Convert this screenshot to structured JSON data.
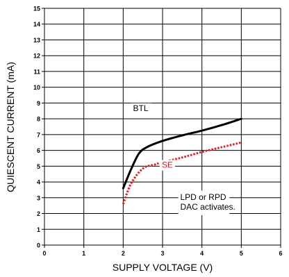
{
  "chart_data": {
    "type": "line",
    "title": "",
    "xlabel": "SUPPLY VOLTAGE (V)",
    "ylabel": "QUIESCENT CURRENT (mA)",
    "xlim": [
      0,
      6
    ],
    "ylim": [
      0,
      15
    ],
    "xticks": [
      "0",
      "1",
      "2",
      "3",
      "4",
      "5",
      "6"
    ],
    "yticks": [
      "0",
      "1",
      "2",
      "3",
      "4",
      "5",
      "6",
      "7",
      "8",
      "9",
      "10",
      "11",
      "12",
      "13",
      "14",
      "15"
    ],
    "grid": true,
    "series": [
      {
        "name": "BTL",
        "color": "#000000",
        "style": "solid",
        "points": [
          [
            2.0,
            3.6
          ],
          [
            2.2,
            4.8
          ],
          [
            2.4,
            5.8
          ],
          [
            2.6,
            6.2
          ],
          [
            3.0,
            6.6
          ],
          [
            3.5,
            6.95
          ],
          [
            4.0,
            7.25
          ],
          [
            4.5,
            7.6
          ],
          [
            5.0,
            8.0
          ]
        ]
      },
      {
        "name": "SE",
        "color": "#e02020",
        "style": "dotted",
        "points": [
          [
            2.0,
            2.6
          ],
          [
            2.2,
            3.9
          ],
          [
            2.5,
            4.85
          ],
          [
            2.8,
            5.1
          ],
          [
            3.0,
            5.25
          ],
          [
            3.5,
            5.55
          ],
          [
            4.0,
            5.9
          ],
          [
            4.5,
            6.2
          ],
          [
            5.0,
            6.5
          ]
        ]
      }
    ],
    "annotations": [
      {
        "text": "LPD or RPD",
        "x": 3.45,
        "y": 2.85
      },
      {
        "text": "DAC activates.",
        "x": 3.45,
        "y": 2.25
      }
    ]
  }
}
